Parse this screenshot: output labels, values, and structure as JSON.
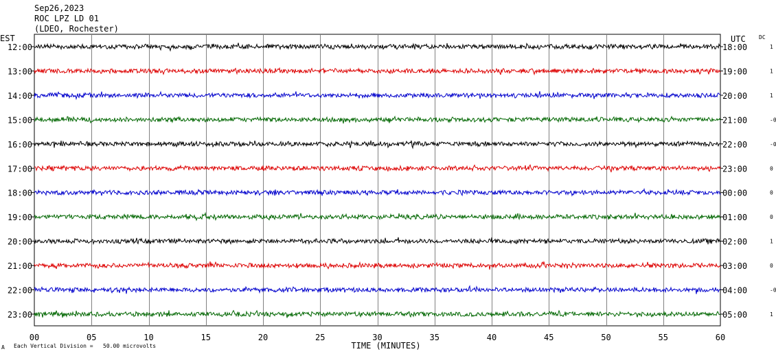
{
  "header": {
    "date": "Sep26,2023",
    "station": "ROC LPZ LD 01",
    "network": "(LDEO, Rochester)"
  },
  "footer": {
    "scale_note": "Each Vertical Division =   50.00 microvolts",
    "corner_mark": "A"
  },
  "colors": {
    "black": "#000000",
    "red": "#dd0000",
    "blue": "#0000cc",
    "green": "#006600",
    "grid": "#808080"
  },
  "chart_data": {
    "type": "line",
    "title": "",
    "xlabel": "TIME (MINUTES)",
    "ylabel": "",
    "left_axis_label": "EST",
    "right_axis_label": "UTC",
    "dc_label": "DC",
    "xlim": [
      0,
      60
    ],
    "x_ticks": [
      "00",
      "05",
      "10",
      "15",
      "20",
      "25",
      "30",
      "35",
      "40",
      "45",
      "50",
      "55",
      "60"
    ],
    "grid": true,
    "rows": [
      {
        "est": "12:00",
        "utc": "18:00",
        "dc": "1",
        "color": "#000000"
      },
      {
        "est": "13:00",
        "utc": "19:00",
        "dc": "1",
        "color": "#dd0000"
      },
      {
        "est": "14:00",
        "utc": "20:00",
        "dc": "1",
        "color": "#0000cc"
      },
      {
        "est": "15:00",
        "utc": "21:00",
        "dc": "-0",
        "color": "#006600"
      },
      {
        "est": "16:00",
        "utc": "22:00",
        "dc": "-0",
        "color": "#000000"
      },
      {
        "est": "17:00",
        "utc": "23:00",
        "dc": "0",
        "color": "#dd0000"
      },
      {
        "est": "18:00",
        "utc": "00:00",
        "dc": "0",
        "color": "#0000cc"
      },
      {
        "est": "19:00",
        "utc": "01:00",
        "dc": "0",
        "color": "#006600"
      },
      {
        "est": "20:00",
        "utc": "02:00",
        "dc": "1",
        "color": "#000000"
      },
      {
        "est": "21:00",
        "utc": "03:00",
        "dc": "0",
        "color": "#dd0000"
      },
      {
        "est": "22:00",
        "utc": "04:00",
        "dc": "-0",
        "color": "#0000cc"
      },
      {
        "est": "23:00",
        "utc": "05:00",
        "dc": "1",
        "color": "#006600"
      }
    ]
  }
}
